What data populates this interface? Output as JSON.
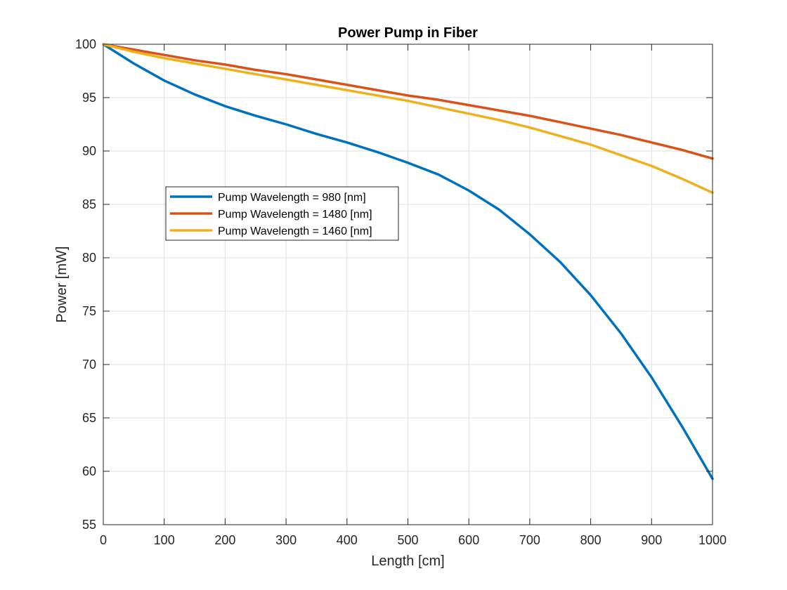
{
  "chart_data": {
    "type": "line",
    "title": "Power Pump in Fiber",
    "xlabel": "Length [cm]",
    "ylabel": "Power [mW]",
    "xlim": [
      0,
      1000
    ],
    "ylim": [
      55,
      100
    ],
    "xticks": [
      0,
      100,
      200,
      300,
      400,
      500,
      600,
      700,
      800,
      900,
      1000
    ],
    "yticks": [
      55,
      60,
      65,
      70,
      75,
      80,
      85,
      90,
      95,
      100
    ],
    "grid": true,
    "legend_position": "upper-left-inside",
    "x": [
      0,
      50,
      100,
      150,
      200,
      250,
      300,
      350,
      400,
      450,
      500,
      550,
      600,
      650,
      700,
      750,
      800,
      850,
      900,
      950,
      1000
    ],
    "series": [
      {
        "name": "Pump Wavelength = 980 [nm]",
        "color": "#0072BD",
        "values": [
          100,
          98.2,
          96.6,
          95.3,
          94.2,
          93.3,
          92.5,
          91.6,
          90.8,
          89.9,
          88.9,
          87.8,
          86.3,
          84.5,
          82.2,
          79.6,
          76.5,
          72.9,
          68.8,
          64.2,
          59.3
        ]
      },
      {
        "name": "Pump Wavelength = 1480 [nm]",
        "color": "#D95319",
        "values": [
          100,
          99.5,
          99.0,
          98.5,
          98.1,
          97.6,
          97.2,
          96.7,
          96.2,
          95.7,
          95.2,
          94.8,
          94.3,
          93.8,
          93.3,
          92.7,
          92.1,
          91.5,
          90.8,
          90.1,
          89.3
        ]
      },
      {
        "name": "Pump Wavelength = 1460 [nm]",
        "color": "#EDB120",
        "values": [
          100,
          99.3,
          98.7,
          98.2,
          97.7,
          97.2,
          96.7,
          96.2,
          95.7,
          95.2,
          94.7,
          94.1,
          93.5,
          92.9,
          92.2,
          91.4,
          90.6,
          89.6,
          88.6,
          87.4,
          86.1
        ]
      }
    ]
  }
}
